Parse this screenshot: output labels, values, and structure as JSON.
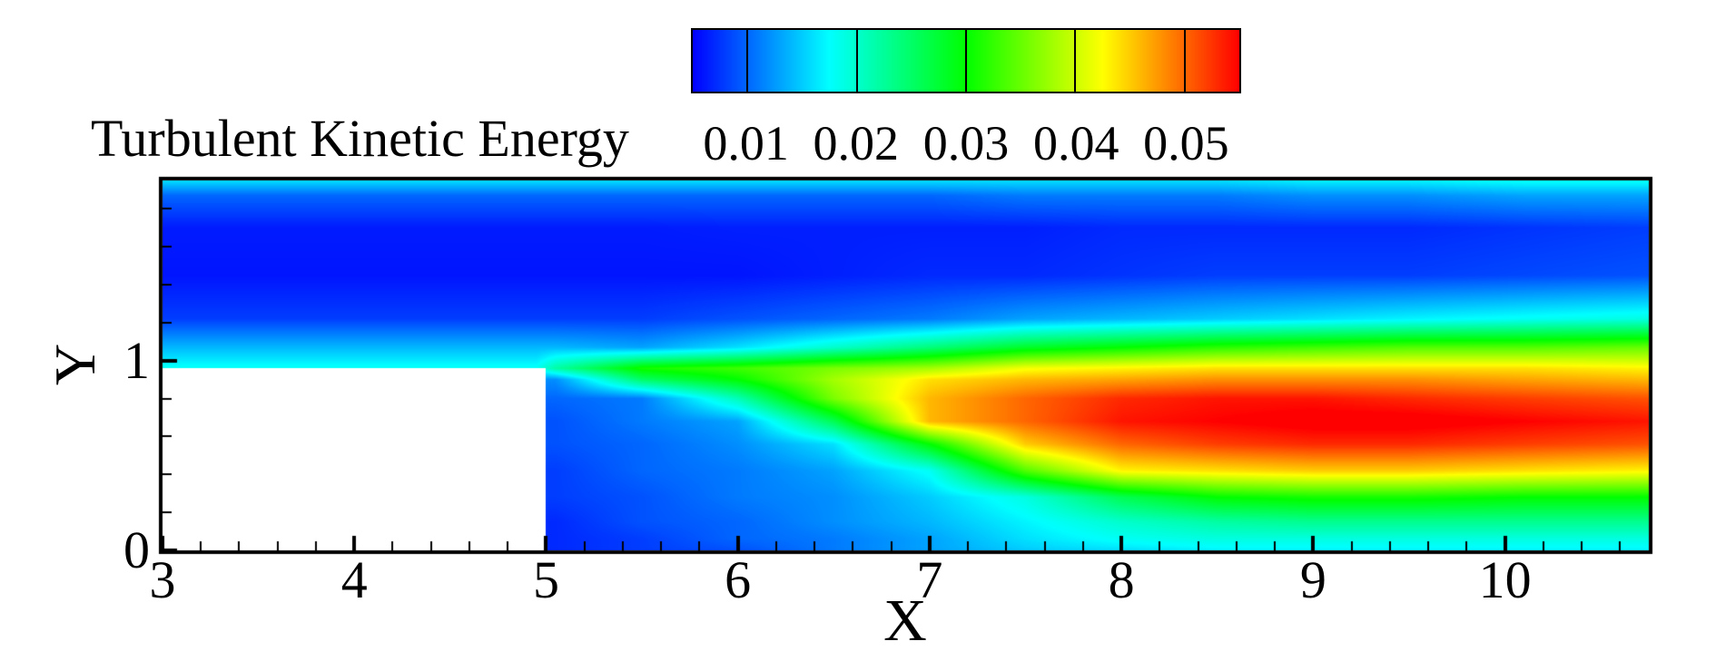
{
  "chart_data": {
    "type": "heatmap",
    "title": "Turbulent Kinetic Energy",
    "xlabel": "X",
    "ylabel": "Y",
    "x_range": [
      3,
      10.75
    ],
    "y_range": [
      0,
      1.95
    ],
    "x_tick_values": [
      3,
      4,
      5,
      6,
      7,
      8,
      9,
      10
    ],
    "x_tick_labels": [
      "3",
      "4",
      "5",
      "6",
      "7",
      "8",
      "9",
      "10"
    ],
    "y_tick_values": [
      0,
      1
    ],
    "y_tick_labels": [
      "0",
      "1"
    ],
    "minor_tick_step": 0.2,
    "grid_lines": "off",
    "legend_position": "top-center-colorbar",
    "colorbar": {
      "range": [
        0.005,
        0.055
      ],
      "tick_values": [
        0.01,
        0.02,
        0.03,
        0.04,
        0.05
      ],
      "tick_labels": [
        "0.01",
        "0.02",
        "0.03",
        "0.04",
        "0.05"
      ],
      "colormap": [
        {
          "pos": 0.0,
          "color": "#0000FF"
        },
        {
          "pos": 0.25,
          "color": "#00FFFF"
        },
        {
          "pos": 0.5,
          "color": "#00FF00"
        },
        {
          "pos": 0.75,
          "color": "#FFFF00"
        },
        {
          "pos": 1.0,
          "color": "#FF0000"
        }
      ]
    },
    "step_region": {
      "x_min": 3,
      "x_max": 5,
      "y_min": 0,
      "y_max": 0.96,
      "fill": "#FFFFFF"
    },
    "grid": {
      "x": [
        3.0,
        3.7,
        4.4,
        4.95,
        5.05,
        5.5,
        6.0,
        6.5,
        7.0,
        7.5,
        8.0,
        8.5,
        9.0,
        9.5,
        10.1,
        10.75
      ],
      "y": [
        0.0,
        0.06,
        0.15,
        0.28,
        0.42,
        0.56,
        0.68,
        0.8,
        0.9,
        0.96,
        1.07,
        1.22,
        1.45,
        1.7,
        1.87,
        1.95
      ],
      "values": [
        [
          null,
          null,
          null,
          null,
          0.007,
          0.008,
          0.009,
          0.011,
          0.013,
          0.015,
          0.016,
          0.017,
          0.017,
          0.017,
          0.017,
          0.017
        ],
        [
          null,
          null,
          null,
          null,
          0.007,
          0.008,
          0.01,
          0.011,
          0.013,
          0.016,
          0.018,
          0.019,
          0.019,
          0.019,
          0.019,
          0.019
        ],
        [
          null,
          null,
          null,
          null,
          0.007,
          0.009,
          0.01,
          0.012,
          0.014,
          0.017,
          0.02,
          0.022,
          0.023,
          0.023,
          0.023,
          0.023
        ],
        [
          null,
          null,
          null,
          null,
          0.008,
          0.009,
          0.011,
          0.012,
          0.015,
          0.019,
          0.026,
          0.03,
          0.031,
          0.031,
          0.03,
          0.03
        ],
        [
          null,
          null,
          null,
          null,
          0.008,
          0.01,
          0.011,
          0.013,
          0.018,
          0.034,
          0.043,
          0.044,
          0.045,
          0.045,
          0.044,
          0.043
        ],
        [
          null,
          null,
          null,
          null,
          0.009,
          0.01,
          0.012,
          0.016,
          0.03,
          0.045,
          0.05,
          0.052,
          0.053,
          0.053,
          0.052,
          0.051
        ],
        [
          null,
          null,
          null,
          null,
          0.009,
          0.011,
          0.013,
          0.026,
          0.046,
          0.05,
          0.054,
          0.055,
          0.056,
          0.056,
          0.055,
          0.054
        ],
        [
          null,
          null,
          null,
          null,
          0.01,
          0.011,
          0.021,
          0.036,
          0.046,
          0.05,
          0.053,
          0.054,
          0.054,
          0.053,
          0.052,
          0.051
        ],
        [
          null,
          null,
          null,
          null,
          0.012,
          0.025,
          0.03,
          0.038,
          0.044,
          0.046,
          0.047,
          0.048,
          0.048,
          0.048,
          0.047,
          0.046
        ],
        [
          0.018,
          0.018,
          0.018,
          0.018,
          0.022,
          0.031,
          0.033,
          0.036,
          0.038,
          0.042,
          0.043,
          0.044,
          0.044,
          0.044,
          0.044,
          0.043
        ],
        [
          0.014,
          0.014,
          0.014,
          0.014,
          0.014,
          0.013,
          0.016,
          0.02,
          0.024,
          0.028,
          0.03,
          0.032,
          0.033,
          0.034,
          0.034,
          0.035
        ],
        [
          0.008,
          0.008,
          0.008,
          0.008,
          0.008,
          0.008,
          0.009,
          0.01,
          0.011,
          0.013,
          0.014,
          0.015,
          0.016,
          0.017,
          0.018,
          0.019
        ],
        [
          0.006,
          0.006,
          0.006,
          0.006,
          0.006,
          0.006,
          0.006,
          0.0065,
          0.007,
          0.007,
          0.0075,
          0.008,
          0.008,
          0.008,
          0.0085,
          0.009
        ],
        [
          0.0063,
          0.0063,
          0.0063,
          0.0063,
          0.0063,
          0.0063,
          0.0065,
          0.0065,
          0.0065,
          0.0065,
          0.007,
          0.007,
          0.007,
          0.007,
          0.0075,
          0.008
        ],
        [
          0.01,
          0.01,
          0.01,
          0.01,
          0.01,
          0.01,
          0.01,
          0.01,
          0.01,
          0.011,
          0.011,
          0.011,
          0.012,
          0.012,
          0.013,
          0.013
        ],
        [
          0.016,
          0.016,
          0.016,
          0.016,
          0.016,
          0.016,
          0.016,
          0.016,
          0.016,
          0.016,
          0.016,
          0.016,
          0.017,
          0.017,
          0.018,
          0.018
        ]
      ]
    }
  }
}
